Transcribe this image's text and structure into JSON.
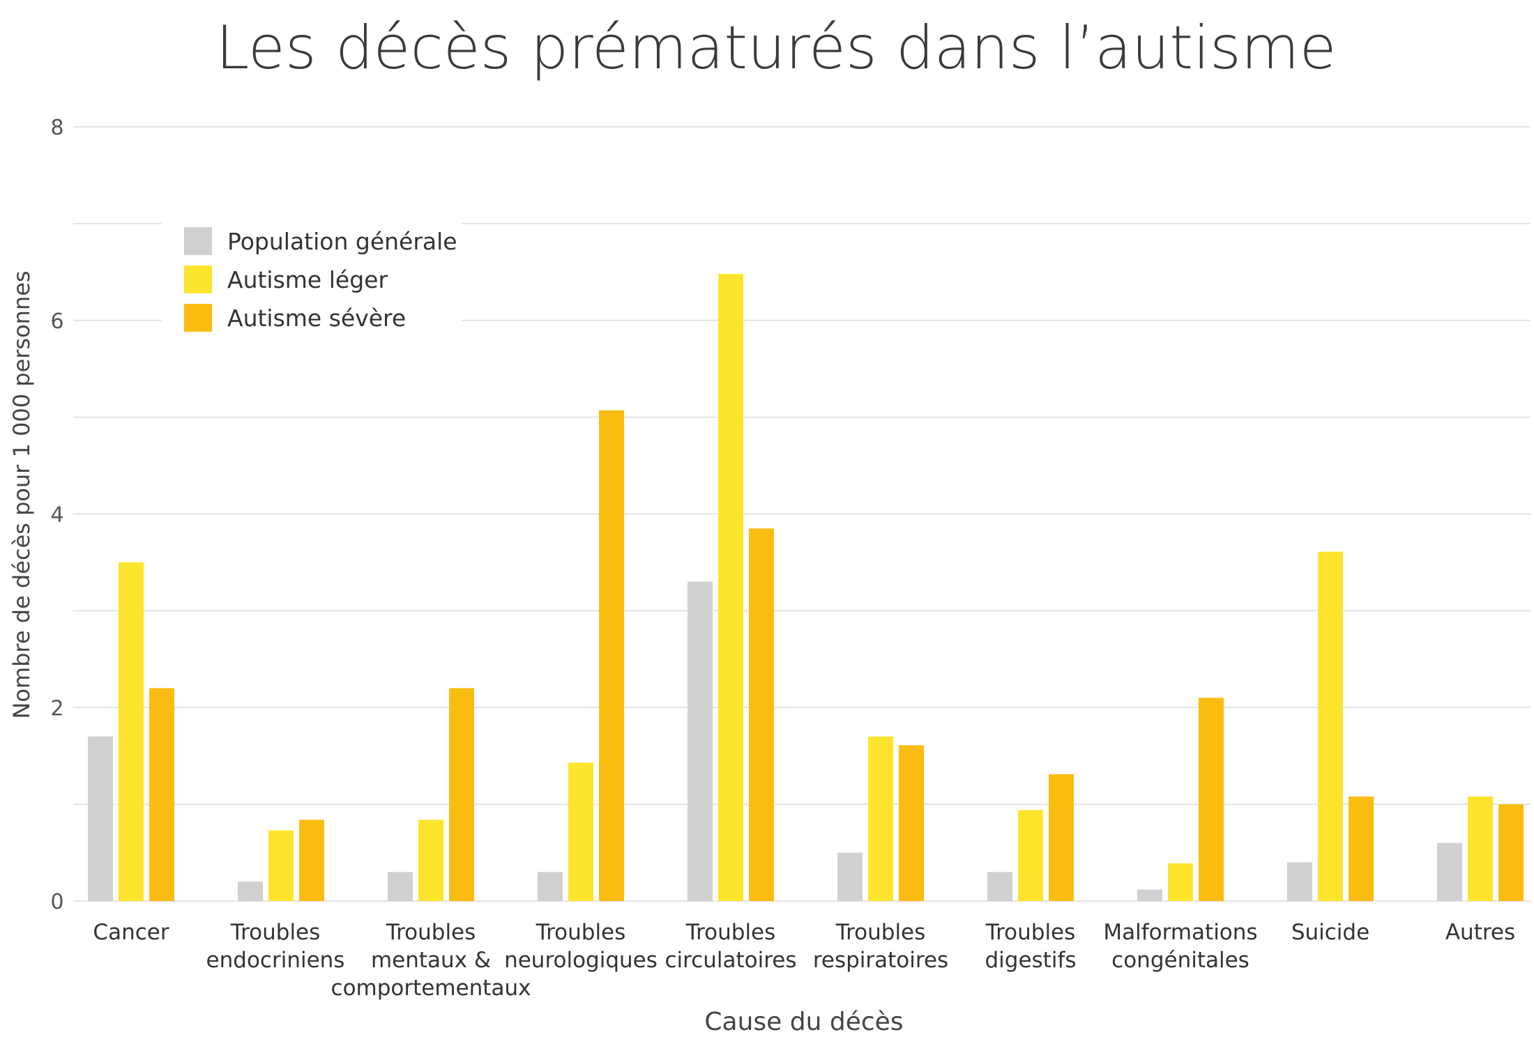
{
  "chart_data": {
    "type": "bar",
    "title": "Les décès prématurés dans l’autisme",
    "xlabel": "Cause du décès",
    "ylabel": "Nombre de décès pour 1 000 personnes",
    "ylim": [
      0,
      8
    ],
    "yticks": [
      0,
      2,
      4,
      6,
      8
    ],
    "grid": true,
    "legend_position": "top-left",
    "categories": [
      [
        "Cancer"
      ],
      [
        "Troubles",
        "endocriniens"
      ],
      [
        "Troubles",
        "mentaux &",
        "comportementaux"
      ],
      [
        "Troubles",
        "neurologiques"
      ],
      [
        "Troubles",
        "circulatoires"
      ],
      [
        "Troubles",
        "respiratoires"
      ],
      [
        "Troubles",
        "digestifs"
      ],
      [
        "Malformations",
        "congénitales"
      ],
      [
        "Suicide"
      ],
      [
        "Autres"
      ]
    ],
    "series": [
      {
        "name": "Population générale",
        "color": "#d0d0d0",
        "values": [
          1.7,
          0.2,
          0.3,
          0.3,
          3.3,
          0.5,
          0.3,
          0.12,
          0.4,
          0.6
        ]
      },
      {
        "name": "Autisme léger",
        "color": "#fde52d",
        "values": [
          3.5,
          0.73,
          0.84,
          1.43,
          6.48,
          1.7,
          0.94,
          0.39,
          3.61,
          1.08
        ]
      },
      {
        "name": "Autisme sévère",
        "color": "#fbbc12",
        "values": [
          2.2,
          0.84,
          2.2,
          5.07,
          3.85,
          1.61,
          1.31,
          2.1,
          1.08,
          1.0
        ]
      }
    ]
  }
}
